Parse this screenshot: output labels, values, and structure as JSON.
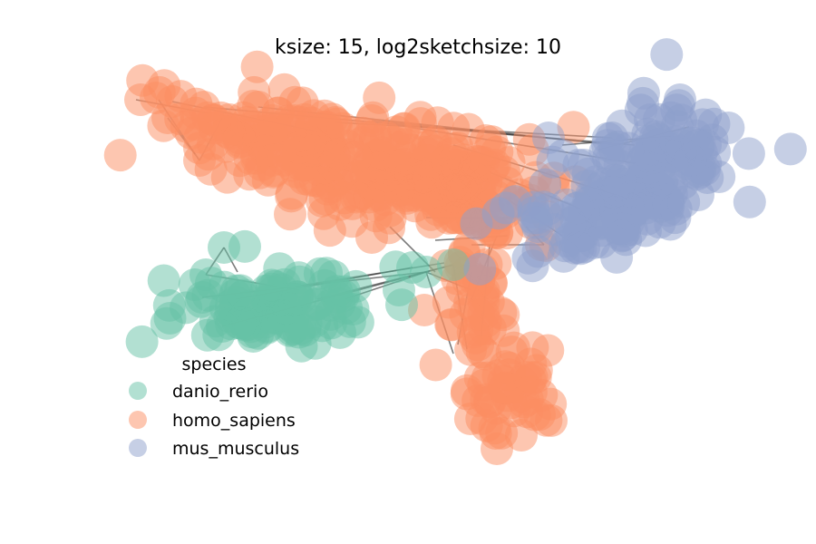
{
  "chart_data": {
    "type": "scatter",
    "title": "ksize: 15, log2sketchsize: 10",
    "xlabel": "",
    "ylabel": "",
    "grid": false,
    "axes_visible": false,
    "legend": {
      "title": "species",
      "placement": "lower-left",
      "entries": [
        "danio_rerio",
        "homo_sapiens",
        "mus_musculus"
      ]
    },
    "series": [
      {
        "name": "danio_rerio",
        "color": "#66c2a5",
        "cluster": "left-middle elongated cluster"
      },
      {
        "name": "homo_sapiens",
        "color": "#fc8d62",
        "cluster": "large top cluster with branch extending down to bottom-center"
      },
      {
        "name": "mus_musculus",
        "color": "#8da0cb",
        "cluster": "right cluster"
      }
    ],
    "node_alpha": 0.5,
    "edge_color": "#333333"
  }
}
